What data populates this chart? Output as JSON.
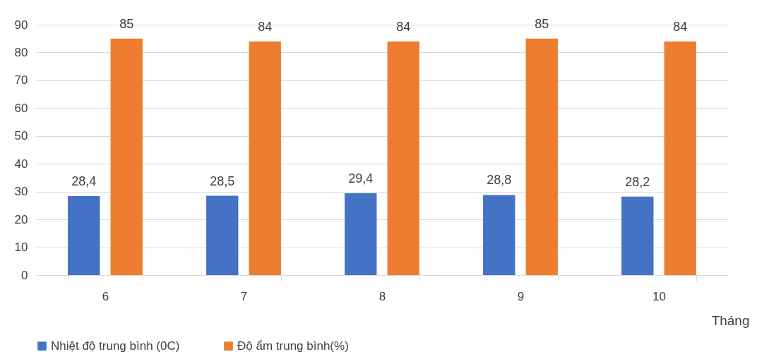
{
  "chart_data": {
    "type": "bar",
    "xlabel": "Tháng",
    "categories": [
      "6",
      "7",
      "8",
      "9",
      "10"
    ],
    "series": [
      {
        "name": "Nhiệt độ trung bình (0C)",
        "color": "#4472c4",
        "values": [
          28.4,
          28.5,
          29.4,
          28.8,
          28.2
        ],
        "value_labels": [
          "28,4",
          "28,5",
          "29,4",
          "28,8",
          "28,2"
        ]
      },
      {
        "name": "Độ ẩm trung bình(%)",
        "color": "#ed7d31",
        "values": [
          85,
          84,
          84,
          85,
          84
        ],
        "value_labels": [
          "85",
          "84",
          "84",
          "85",
          "84"
        ]
      }
    ],
    "ylim": [
      0,
      90
    ],
    "yticks": [
      0,
      10,
      20,
      30,
      40,
      50,
      60,
      70,
      80,
      90
    ],
    "grid": "y",
    "legend": "bottom"
  }
}
